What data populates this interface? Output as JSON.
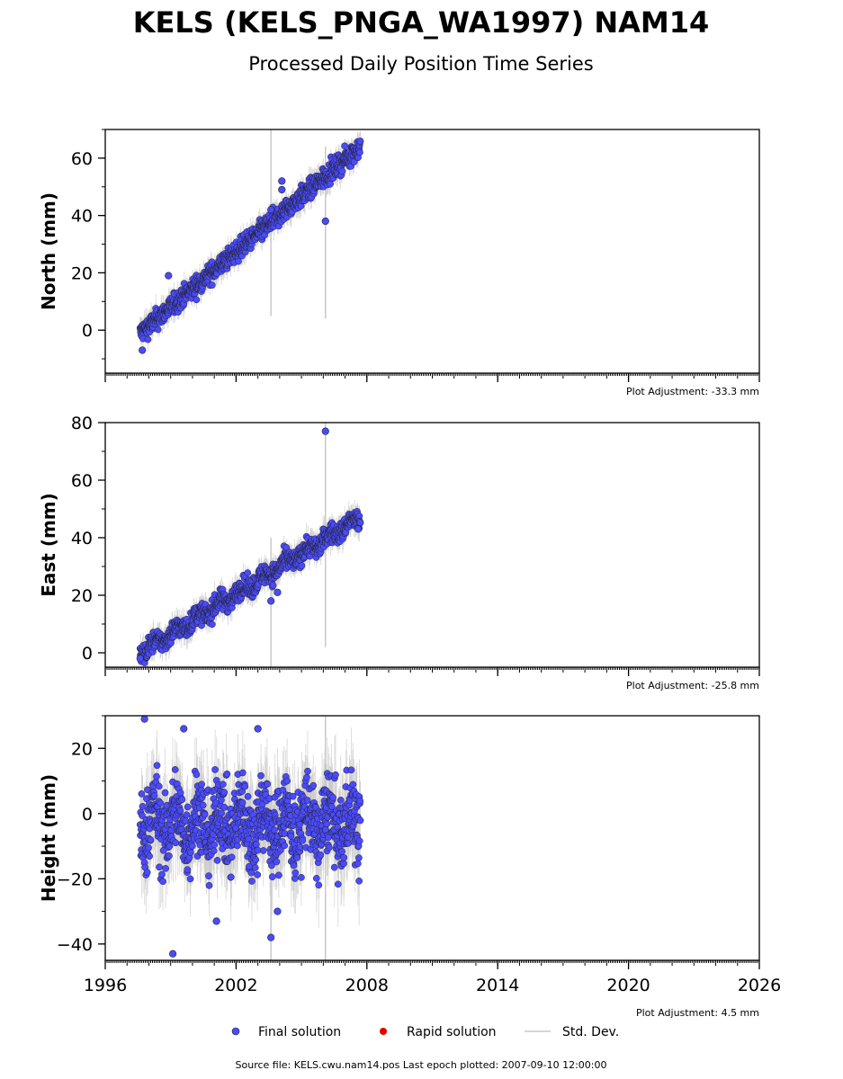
{
  "title": "KELS (KELS_PNGA_WA1997) NAM14",
  "subtitle": "Processed Daily Position Time Series",
  "source_line": "Source file: KELS.cwu.nam14.pos  Last epoch plotted: 2007-09-10 12:00:00",
  "legend": {
    "final_label": "Final solution",
    "rapid_label": "Rapid solution",
    "std_label": "Std. Dev.",
    "final_color": "#4a4aff",
    "rapid_color": "#e00000",
    "std_color": "#c8c8c8"
  },
  "chart_data": [
    {
      "type": "scatter",
      "ylabel": "North (mm)",
      "adjustment": "Plot Adjustment: -33.3 mm",
      "xlim": [
        1996,
        2026
      ],
      "ylim": [
        -15,
        70
      ],
      "yticks": [
        0,
        20,
        40,
        60
      ],
      "xticks": [
        1996,
        2002,
        2008,
        2014,
        2020,
        2026
      ],
      "show_xtick_labels": false,
      "trend": {
        "start": [
          1997.6,
          -1
        ],
        "end": [
          2007.7,
          64
        ]
      },
      "scatter_amplitude": 2.5,
      "outliers": [
        {
          "x": 2003.6,
          "y": 42,
          "err_low": 5,
          "err_high": 70
        },
        {
          "x": 2006.1,
          "y": 38,
          "err_low": 4,
          "err_high": 64
        },
        {
          "x": 2004.1,
          "y": 52
        },
        {
          "x": 2004.1,
          "y": 49
        },
        {
          "x": 1998.9,
          "y": 19
        },
        {
          "x": 1997.7,
          "y": -7
        }
      ]
    },
    {
      "type": "scatter",
      "ylabel": "East (mm)",
      "adjustment": "Plot Adjustment: -25.8 mm",
      "xlim": [
        1996,
        2026
      ],
      "ylim": [
        -5,
        80
      ],
      "yticks": [
        0,
        20,
        40,
        60,
        80
      ],
      "xticks": [
        1996,
        2002,
        2008,
        2014,
        2020,
        2026
      ],
      "show_xtick_labels": false,
      "trend": {
        "start": [
          1997.6,
          0
        ],
        "end": [
          2007.7,
          47
        ]
      },
      "scatter_amplitude": 2.5,
      "outliers": [
        {
          "x": 2006.1,
          "y": 77,
          "err_low": 2,
          "err_high": 80
        },
        {
          "x": 2003.6,
          "y": 18,
          "err_low": -5,
          "err_high": 40
        },
        {
          "x": 2003.9,
          "y": 21
        },
        {
          "x": 1997.6,
          "y": -2
        },
        {
          "x": 2007.6,
          "y": 43
        }
      ]
    },
    {
      "type": "scatter",
      "ylabel": "Height (mm)",
      "adjustment": "Plot Adjustment: 4.5 mm",
      "xlim": [
        1996,
        2026
      ],
      "ylim": [
        -45,
        30
      ],
      "yticks": [
        -40,
        -20,
        0,
        20
      ],
      "xticks": [
        1996,
        2002,
        2008,
        2014,
        2020,
        2026
      ],
      "show_xtick_labels": true,
      "trend": {
        "start": [
          1997.6,
          -3
        ],
        "end": [
          2007.7,
          -3
        ]
      },
      "scatter_amplitude": 9,
      "outliers": [
        {
          "x": 1997.8,
          "y": 29
        },
        {
          "x": 1999.1,
          "y": -43
        },
        {
          "x": 2003.6,
          "y": -38,
          "err_low": -45,
          "err_high": 10
        },
        {
          "x": 2006.1,
          "y": -5,
          "err_low": -45,
          "err_high": 30
        },
        {
          "x": 2003.0,
          "y": 26
        },
        {
          "x": 2001.1,
          "y": -33
        },
        {
          "x": 2003.9,
          "y": -30
        },
        {
          "x": 1999.6,
          "y": 26
        }
      ]
    }
  ]
}
